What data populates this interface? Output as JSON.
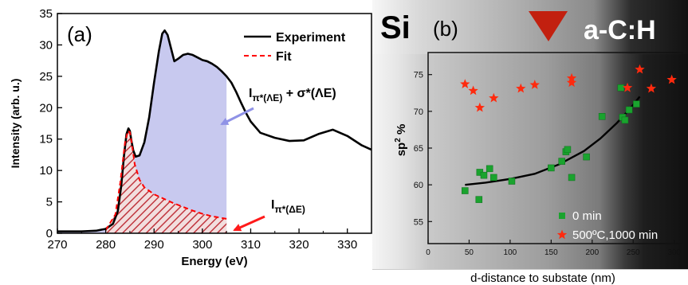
{
  "chart_data": [
    {
      "type": "line",
      "panel_label": "(a)",
      "xlabel": "Energy (eV)",
      "ylabel": "Intensity (arb. u.)",
      "xlim": [
        270,
        335
      ],
      "ylim": [
        0,
        35
      ],
      "xticks": [
        270,
        280,
        290,
        300,
        310,
        320,
        330
      ],
      "yticks": [
        0,
        5,
        10,
        15,
        20,
        25,
        30,
        35
      ],
      "legend_position": "top-right",
      "series": [
        {
          "name": "Experiment",
          "color": "#000000",
          "x": [
            270,
            275,
            278,
            280,
            281.5,
            282.5,
            283.2,
            283.8,
            284.3,
            284.7,
            285,
            285.3,
            285.7,
            286.2,
            287,
            288,
            289,
            290,
            291,
            291.7,
            292.2,
            292.8,
            293.5,
            294.2,
            295,
            296,
            297,
            298,
            299,
            300,
            301,
            302,
            303,
            304,
            305,
            306,
            307,
            308,
            309,
            310,
            312,
            315,
            318,
            321,
            324,
            327,
            330,
            333,
            335
          ],
          "y": [
            0.3,
            0.3,
            0.4,
            0.7,
            1.5,
            3.5,
            7.5,
            12.5,
            15.8,
            16.7,
            16.3,
            14.8,
            13.2,
            12.2,
            12.4,
            14.5,
            18.5,
            24,
            29,
            31.8,
            32.3,
            31.6,
            29.5,
            27.4,
            27.8,
            28.4,
            28.6,
            28.4,
            28,
            27.6,
            27.4,
            27,
            26.5,
            25.8,
            25,
            24,
            22.5,
            20.8,
            19.2,
            17.8,
            16,
            15.2,
            14.7,
            14.8,
            15.8,
            16.5,
            15.5,
            14,
            13.3
          ]
        },
        {
          "name": "Fit",
          "color": "#ff0000",
          "dashed": true,
          "x": [
            280,
            282,
            283,
            284,
            284.6,
            285,
            285.4,
            286,
            287,
            288,
            290,
            292,
            294,
            296,
            298,
            300,
            302,
            305
          ],
          "y": [
            0.5,
            3,
            8,
            14.5,
            16.3,
            16.1,
            14.3,
            11,
            8.5,
            7.3,
            6.2,
            5.5,
            4.8,
            4.2,
            3.6,
            3.1,
            2.7,
            2.3
          ]
        }
      ],
      "fill_region_xmax": 305,
      "annotations": [
        {
          "main": "I",
          "sub": "π*(ΛE)",
          "rest": " + σ*(ΛE)",
          "rest_sub": "",
          "arrow_color": "#8f92e6"
        },
        {
          "main": "I",
          "sub": "π*(ΔE)",
          "rest": "",
          "arrow_color": "#ff1a1a"
        }
      ]
    },
    {
      "type": "scatter",
      "panel_label": "(b)",
      "corner_left_label": "Si",
      "corner_right_label": "a-C:H",
      "xlabel": "d-distance to substate (nm)",
      "ylabel": "sp",
      "ylabel_sup": "2",
      "ylabel_suffix": " %",
      "xlim": [
        0,
        310
      ],
      "ylim": [
        52,
        78
      ],
      "xticks": [
        0,
        50,
        100,
        150,
        200,
        250,
        300
      ],
      "yticks": [
        55,
        60,
        65,
        70,
        75
      ],
      "legend_position": "bottom-right",
      "series": [
        {
          "name": "0 min",
          "marker": "square",
          "color": "#1aa32e",
          "points": [
            [
              45,
              59.2
            ],
            [
              62,
              58
            ],
            [
              63,
              61.7
            ],
            [
              68,
              61.3
            ],
            [
              75,
              62.2
            ],
            [
              80,
              61
            ],
            [
              102,
              60.5
            ],
            [
              150,
              62.3
            ],
            [
              163,
              63.2
            ],
            [
              168,
              64.5
            ],
            [
              170,
              64.8
            ],
            [
              175,
              61
            ],
            [
              193,
              63.8
            ],
            [
              212,
              69.3
            ],
            [
              235,
              73.2
            ],
            [
              237,
              69.2
            ],
            [
              240,
              68.8
            ],
            [
              245,
              70.2
            ],
            [
              254,
              71
            ]
          ]
        },
        {
          "name": "500ºC,1000 min",
          "marker": "star",
          "color": "#ff2a0e",
          "points": [
            [
              45,
              73.7
            ],
            [
              55,
              72.8
            ],
            [
              63,
              70.5
            ],
            [
              80,
              71.8
            ],
            [
              113,
              73.1
            ],
            [
              130,
              73.6
            ],
            [
              175,
              74.5
            ],
            [
              175,
              73.9
            ],
            [
              243,
              73.2
            ],
            [
              258,
              75.7
            ],
            [
              272,
              73.1
            ],
            [
              297,
              74.3
            ]
          ]
        }
      ],
      "trend_line": {
        "x": [
          45,
          70,
          100,
          130,
          160,
          190,
          210,
          230,
          245,
          258
        ],
        "y": [
          60,
          60.3,
          60.8,
          61.5,
          62.8,
          64.6,
          66.3,
          68.4,
          70.2,
          72
        ]
      }
    }
  ],
  "colors": {
    "fill_blue": "#c8c9ef",
    "hatch_red": "#c0373f",
    "arrow_red": "#d61d14"
  }
}
